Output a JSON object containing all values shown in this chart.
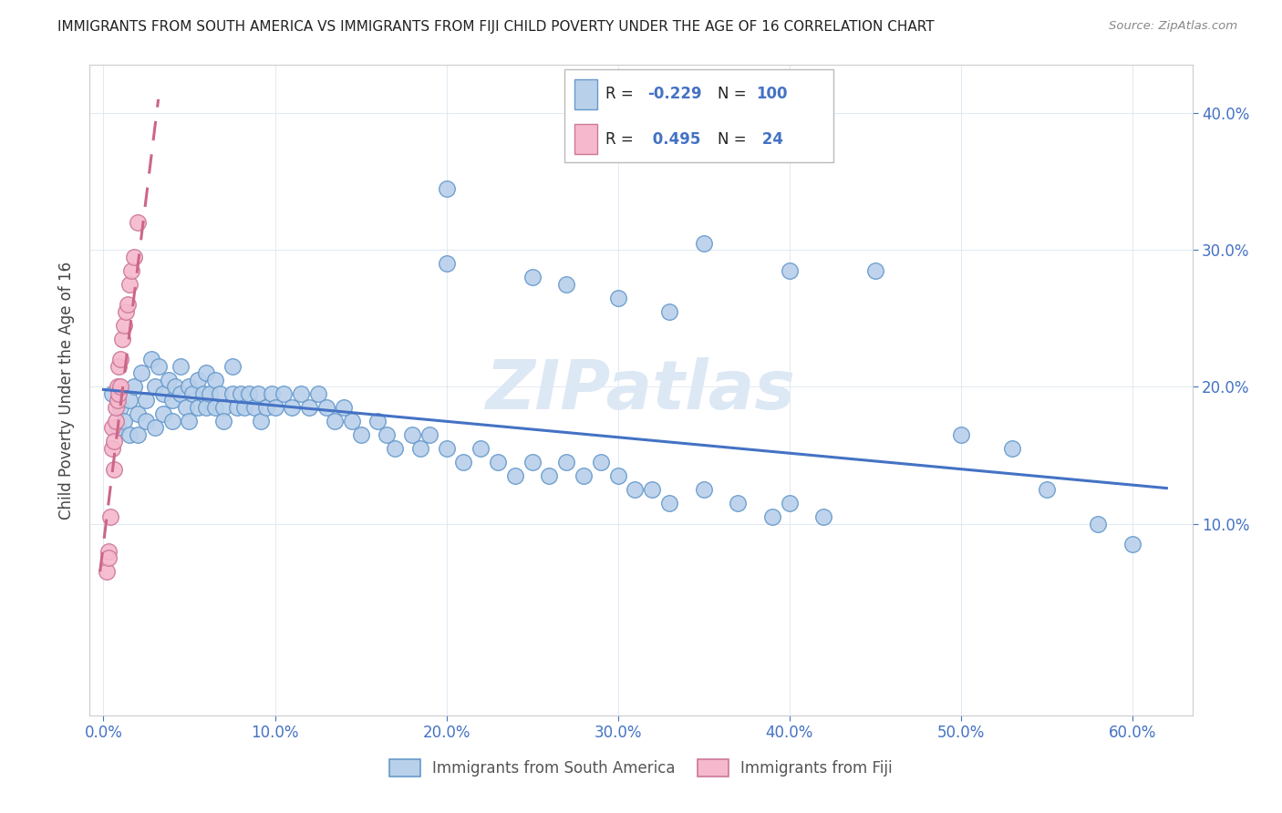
{
  "title": "IMMIGRANTS FROM SOUTH AMERICA VS IMMIGRANTS FROM FIJI CHILD POVERTY UNDER THE AGE OF 16 CORRELATION CHART",
  "source": "Source: ZipAtlas.com",
  "ylabel": "Child Poverty Under the Age of 16",
  "xlabel_ticks": [
    "0.0%",
    "10.0%",
    "20.0%",
    "30.0%",
    "40.0%",
    "50.0%",
    "60.0%"
  ],
  "xlabel_vals": [
    0.0,
    0.1,
    0.2,
    0.3,
    0.4,
    0.5,
    0.6
  ],
  "ylabel_ticks": [
    "10.0%",
    "20.0%",
    "30.0%",
    "40.0%"
  ],
  "ylabel_vals": [
    0.1,
    0.2,
    0.3,
    0.4
  ],
  "xlim": [
    -0.008,
    0.635
  ],
  "ylim": [
    -0.04,
    0.435
  ],
  "legend_sa": "Immigrants from South America",
  "legend_fiji": "Immigrants from Fiji",
  "r_sa": "-0.229",
  "n_sa": "100",
  "r_fiji": "0.495",
  "n_fiji": "24",
  "color_sa": "#b8d0ea",
  "color_fiji": "#f5b8cc",
  "color_sa_edge": "#6699cc",
  "color_fiji_edge": "#cc7799",
  "color_sa_line": "#4472c4",
  "color_fiji_line": "#cc6688",
  "watermark_color": "#dde8f5",
  "sa_x": [
    0.005,
    0.008,
    0.01,
    0.012,
    0.015,
    0.015,
    0.018,
    0.02,
    0.02,
    0.022,
    0.025,
    0.025,
    0.028,
    0.03,
    0.03,
    0.032,
    0.035,
    0.035,
    0.038,
    0.04,
    0.04,
    0.042,
    0.045,
    0.045,
    0.048,
    0.05,
    0.05,
    0.052,
    0.055,
    0.055,
    0.058,
    0.06,
    0.06,
    0.062,
    0.065,
    0.065,
    0.068,
    0.07,
    0.07,
    0.075,
    0.075,
    0.078,
    0.08,
    0.082,
    0.085,
    0.088,
    0.09,
    0.092,
    0.095,
    0.098,
    0.1,
    0.105,
    0.11,
    0.115,
    0.12,
    0.125,
    0.13,
    0.135,
    0.14,
    0.145,
    0.15,
    0.16,
    0.165,
    0.17,
    0.18,
    0.185,
    0.19,
    0.2,
    0.21,
    0.22,
    0.23,
    0.24,
    0.25,
    0.26,
    0.27,
    0.28,
    0.29,
    0.3,
    0.31,
    0.32,
    0.33,
    0.35,
    0.37,
    0.39,
    0.4,
    0.42,
    0.27,
    0.3,
    0.33,
    0.4,
    0.2,
    0.25,
    0.55,
    0.58,
    0.2,
    0.35,
    0.45,
    0.5,
    0.53,
    0.6
  ],
  "sa_y": [
    0.195,
    0.17,
    0.185,
    0.175,
    0.19,
    0.165,
    0.2,
    0.18,
    0.165,
    0.21,
    0.19,
    0.175,
    0.22,
    0.2,
    0.17,
    0.215,
    0.195,
    0.18,
    0.205,
    0.19,
    0.175,
    0.2,
    0.195,
    0.215,
    0.185,
    0.2,
    0.175,
    0.195,
    0.185,
    0.205,
    0.195,
    0.185,
    0.21,
    0.195,
    0.185,
    0.205,
    0.195,
    0.185,
    0.175,
    0.195,
    0.215,
    0.185,
    0.195,
    0.185,
    0.195,
    0.185,
    0.195,
    0.175,
    0.185,
    0.195,
    0.185,
    0.195,
    0.185,
    0.195,
    0.185,
    0.195,
    0.185,
    0.175,
    0.185,
    0.175,
    0.165,
    0.175,
    0.165,
    0.155,
    0.165,
    0.155,
    0.165,
    0.155,
    0.145,
    0.155,
    0.145,
    0.135,
    0.145,
    0.135,
    0.145,
    0.135,
    0.145,
    0.135,
    0.125,
    0.125,
    0.115,
    0.125,
    0.115,
    0.105,
    0.115,
    0.105,
    0.275,
    0.265,
    0.255,
    0.285,
    0.29,
    0.28,
    0.125,
    0.1,
    0.345,
    0.305,
    0.285,
    0.165,
    0.155,
    0.085
  ],
  "fiji_x": [
    0.002,
    0.003,
    0.003,
    0.004,
    0.005,
    0.005,
    0.006,
    0.006,
    0.007,
    0.007,
    0.008,
    0.008,
    0.009,
    0.009,
    0.01,
    0.01,
    0.011,
    0.012,
    0.013,
    0.014,
    0.015,
    0.016,
    0.018,
    0.02
  ],
  "fiji_y": [
    0.065,
    0.08,
    0.075,
    0.105,
    0.155,
    0.17,
    0.14,
    0.16,
    0.175,
    0.185,
    0.19,
    0.2,
    0.195,
    0.215,
    0.2,
    0.22,
    0.235,
    0.245,
    0.255,
    0.26,
    0.275,
    0.285,
    0.295,
    0.32
  ],
  "sa_line_x0": 0.0,
  "sa_line_x1": 0.62,
  "sa_line_y0": 0.198,
  "sa_line_y1": 0.126,
  "fiji_line_x0": -0.002,
  "fiji_line_x1": 0.032,
  "fiji_line_y0": 0.065,
  "fiji_line_y1": 0.41
}
